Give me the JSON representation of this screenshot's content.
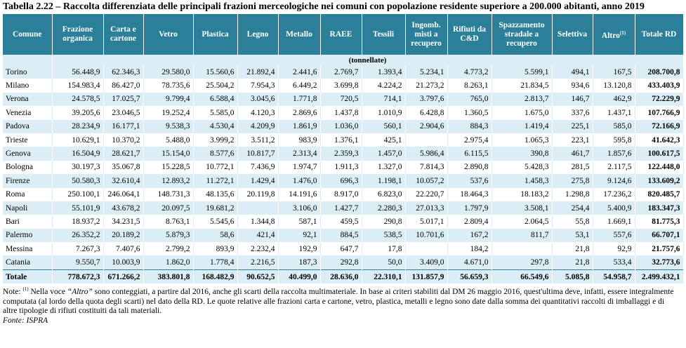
{
  "header": {
    "title": "Tabella 2.22 – Raccolta differenziata delle principali frazioni merceologiche nei comuni con popolazione residente superiore a 200.000 abitanti, anno 2019"
  },
  "table": {
    "columns": [
      {
        "text": "Comune"
      },
      {
        "text": "Frazione organica"
      },
      {
        "text": "Carta e cartone"
      },
      {
        "text": "Vetro"
      },
      {
        "text": "Plastica"
      },
      {
        "text": "Legno"
      },
      {
        "text": "Metallo"
      },
      {
        "text": "RAEE"
      },
      {
        "text": "Tessili"
      },
      {
        "text": "Ingomb. misti a recupero"
      },
      {
        "text": "Rifiuti da C&D"
      },
      {
        "text": "Spazzamento stradale a recupero"
      },
      {
        "text": "Selettiva"
      },
      {
        "text": "Altro",
        "sup": "(1)"
      },
      {
        "text": "Totale RD"
      }
    ],
    "unit": "(tonnellate)",
    "rows": [
      [
        "Torino",
        "56.448,9",
        "62.346,3",
        "29.580,0",
        "15.560,6",
        "21.892,4",
        "2.441,6",
        "2.769,7",
        "1.393,4",
        "5.234,1",
        "4.773,2",
        "5.599,1",
        "494,1",
        "167,5",
        "208.700,8"
      ],
      [
        "Milano",
        "154.983,4",
        "86.427,0",
        "78.735,6",
        "25.504,2",
        "7.954,3",
        "6.449,2",
        "3.699,8",
        "4.224,2",
        "21.273,2",
        "8.263,1",
        "21.834,5",
        "934,6",
        "13.120,8",
        "433.403,9"
      ],
      [
        "Verona",
        "24.578,5",
        "17.025,7",
        "9.799,4",
        "6.588,4",
        "3.045,6",
        "1.771,8",
        "720,5",
        "714,1",
        "3.797,6",
        "765,0",
        "2.813,7",
        "146,7",
        "462,9",
        "72.229,9"
      ],
      [
        "Venezia",
        "39.205,6",
        "23.046,5",
        "19.252,4",
        "5.585,0",
        "4.120,3",
        "2.869,6",
        "1.437,8",
        "1.010,9",
        "6.428,8",
        "1.360,5",
        "1.675,0",
        "337,6",
        "1.437,1",
        "107.766,9"
      ],
      [
        "Padova",
        "28.234,9",
        "16.177,1",
        "9.538,3",
        "4.530,4",
        "4.209,9",
        "1.861,9",
        "1.036,0",
        "560,1",
        "2.904,6",
        "884,3",
        "1.419,4",
        "225,1",
        "585,0",
        "72.166,9"
      ],
      [
        "Trieste",
        "10.629,1",
        "10.370,2",
        "5.488,0",
        "3.999,2",
        "3.511,2",
        "983,9",
        "1.376,1",
        "425,1",
        null,
        "2.975,4",
        "1.065,3",
        "223,1",
        "595,8",
        "41.642,3"
      ],
      [
        "Genova",
        "16.504,9",
        "28.621,7",
        "15.154,0",
        "8.577,6",
        "10.817,7",
        "2.313,4",
        "2.359,3",
        "1.457,0",
        "5.986,4",
        "6.115,5",
        "390,8",
        "461,7",
        "1.857,6",
        "100.617,5"
      ],
      [
        "Bologna",
        "30.197,3",
        "35.067,8",
        "15.228,5",
        "10.772,1",
        "7.436,9",
        "1.974,7",
        "1.911,3",
        "1.327,0",
        "7.814,3",
        "2.890,8",
        "5.428,3",
        "281,5",
        "2.117,5",
        "122.448,0"
      ],
      [
        "Firenze",
        "50.580,3",
        "32.610,4",
        "12.893,2",
        "11.272,1",
        "1.429,4",
        "1.476,0",
        "696,3",
        "1.198,1",
        "10.057,2",
        "537,6",
        "1.458,3",
        "275,8",
        "9.124,6",
        "133.609,2"
      ],
      [
        "Roma",
        "250.100,1",
        "246.064,1",
        "148.731,3",
        "48.135,6",
        "20.119,8",
        "14.191,6",
        "8.917,0",
        "6.823,0",
        "22.220,7",
        "18.464,3",
        "18.183,2",
        "1.298,8",
        "17.236,2",
        "820.485,7"
      ],
      [
        "Napoli",
        "55.101,9",
        "43.678,2",
        "20.097,5",
        "19.681,2",
        null,
        "3.106,0",
        "1.427,7",
        "2.280,3",
        "27.013,3",
        "1.797,9",
        "3.508,1",
        "254,4",
        "5.400,9",
        "183.347,3"
      ],
      [
        "Bari",
        "18.937,2",
        "34.231,5",
        "8.763,1",
        "5.545,6",
        "1.344,8",
        "587,1",
        "459,5",
        "290,8",
        "5.017,1",
        "2.809,4",
        "2.064,5",
        "55,8",
        "1.669,1",
        "81.775,3"
      ],
      [
        "Palermo",
        "26.352,2",
        "20.189,2",
        "5.879,3",
        "58,6",
        "421,4",
        "92,1",
        "884,5",
        "538,5",
        "10.701,6",
        "167,2",
        "811,7",
        "53,1",
        "557,6",
        "66.707,1"
      ],
      [
        "Messina",
        "7.267,3",
        "7.407,6",
        "2.799,2",
        "893,9",
        "2.232,4",
        "192,9",
        "647,7",
        "17,8",
        null,
        "184,2",
        null,
        "21,8",
        "92,9",
        "21.757,6"
      ],
      [
        "Catania",
        "9.550,7",
        "10.003,9",
        "1.862,0",
        "1.778,4",
        "2.216,5",
        "187,3",
        "292,8",
        "50,0",
        "3.409,0",
        "4.671,0",
        "297,8",
        "21,8",
        "533,4",
        "32.773,6"
      ]
    ],
    "total_row": [
      "Totale",
      "778.672,3",
      "671.266,2",
      "383.801,8",
      "168.482,9",
      "90.652,5",
      "40.499,0",
      "28.636,0",
      "22.310,1",
      "131.857,9",
      "56.659,3",
      "66.549,6",
      "5.085,8",
      "54.958,7",
      "2.499.432,1"
    ]
  },
  "note": {
    "label": "Note:",
    "marker": "(1)",
    "before": "Nella voce",
    "italic": "“Altro”",
    "after": "sono conteggiati, a partire dal 2016, anche gli scarti della raccolta multimateriale. In base ai criteri stabiliti dal DM 26 maggio 2016, quest'ultima deve, infatti, essere integralmente computata (al lordo della quota degli scarti) nel dato della RD. Le quote relative alle frazioni carta e cartone, vetro, plastica, metalli e legno sono date dalla somma dei quantitativi raccolti di imballaggi e di altre tipologie di rifiuti costituiti da tali materiali."
  },
  "source": "Fonte: ISPRA"
}
